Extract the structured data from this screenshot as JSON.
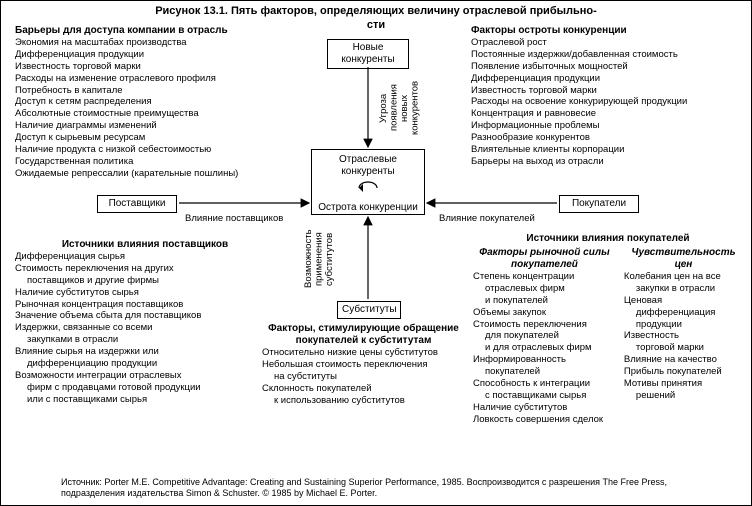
{
  "figure_title_line1": "Рисунок 13.1. Пять факторов, определяющих величину отраслевой прибыльно-",
  "figure_title_line2": "сти",
  "diagram": {
    "type": "flowchart",
    "background_color": "#ffffff",
    "border_color": "#000000",
    "nodes": {
      "center_top": "Отраслевые конкуренты",
      "center_bottom": "Острота конкуренции",
      "top": "Новые конкуренты",
      "left": "Поставщики",
      "right": "Покупатели",
      "bottom": "Субституты"
    },
    "edge_labels": {
      "top_to_center": "Угроза появления новых конкурентов",
      "left_to_center": "Влияние поставщиков",
      "right_to_center": "Влияние покупателей",
      "bottom_to_center": "Возможность применения субститутов"
    }
  },
  "sections": {
    "barriers": {
      "title": "Барьеры для доступа компании в отрасль",
      "items": [
        "Экономия на масштабах производства",
        "Дифференциация продукции",
        "Известность торговой марки",
        "Расходы на изменение отраслевого профиля",
        "Потребность в капитале",
        "Доступ к сетям распределения",
        "Абсолютные стоимостные преимущества",
        "Наличие диаграммы изменений",
        "Доступ к сырьевым ресурсам",
        "Наличие продукта с низкой себестоимостью",
        "Государственная политика",
        "Ожидаемые репрессалии (карательные пошлины)"
      ]
    },
    "rivalry": {
      "title": "Факторы остроты конкуренции",
      "items": [
        "Отраслевой рост",
        "Постоянные издержки/добавленная стоимость",
        "Появление избыточных мощностей",
        "Дифференциация продукции",
        "Известность торговой марки",
        "Расходы на освоение конкурирующей продукции",
        "Концентрация и равновесие",
        "Информационные проблемы",
        "Разнообразие конкурентов",
        "Влиятельные клиенты корпорации",
        "Барьеры на выход из отрасли"
      ]
    },
    "suppliers": {
      "title": "Источники влияния поставщиков",
      "items": [
        "Дифференциация сырья",
        "Стоимость переключения на других",
        "  поставщиков и другие фирмы",
        "Наличие субститутов сырья",
        "Рыночная концентрация поставщиков",
        "Значение объема сбыта для поставщиков",
        "Издержки, связанные со всеми",
        "  закупками в отрасли",
        "Влияние сырья на издержки или",
        "  дифференциацию продукции",
        "Возможности интеграции отраслевых",
        "  фирм с продавцами готовой продукции",
        "  или с поставщиками сырья"
      ]
    },
    "substitutes": {
      "title": "Факторы, стимулирующие обращение покупателей к субститутам",
      "items": [
        "Относительно низкие цены субститутов",
        "Небольшая стоимость переключения",
        "  на субституты",
        "Склонность покупателей",
        "  к использованию субститутов"
      ]
    },
    "buyers": {
      "title": "Источники влияния покупателей",
      "col1_title": "Факторы рыночной силы покупателей",
      "col1_items": [
        "Степень концентрации",
        "  отраслевых фирм",
        "  и покупателей",
        "Объемы закупок",
        "Стоимость переключения",
        "  для покупателей",
        "  и для отраслевых фирм",
        "Информированность",
        "  покупателей",
        "Способность к интеграции",
        "  с поставщиками сырья",
        "Наличие субститутов",
        "Ловкость совершения сделок"
      ],
      "col2_title": "Чувствительность цен",
      "col2_items": [
        "Колебания цен на все",
        "  закупки в отрасли",
        "Ценовая",
        "  дифференциация",
        "  продукции",
        "Известность",
        "  торговой марки",
        "Влияние на качество",
        "Прибыль покупателей",
        "Мотивы принятия",
        "  решений"
      ]
    }
  },
  "source": "Источник: Porter M.E. Competitive Advantage: Creating and Sustaining Superior Performance, 1985. Воспроизводится с разрешения The Free Press, подразделения издательства Simon & Schuster. © 1985 by Michael E. Porter."
}
